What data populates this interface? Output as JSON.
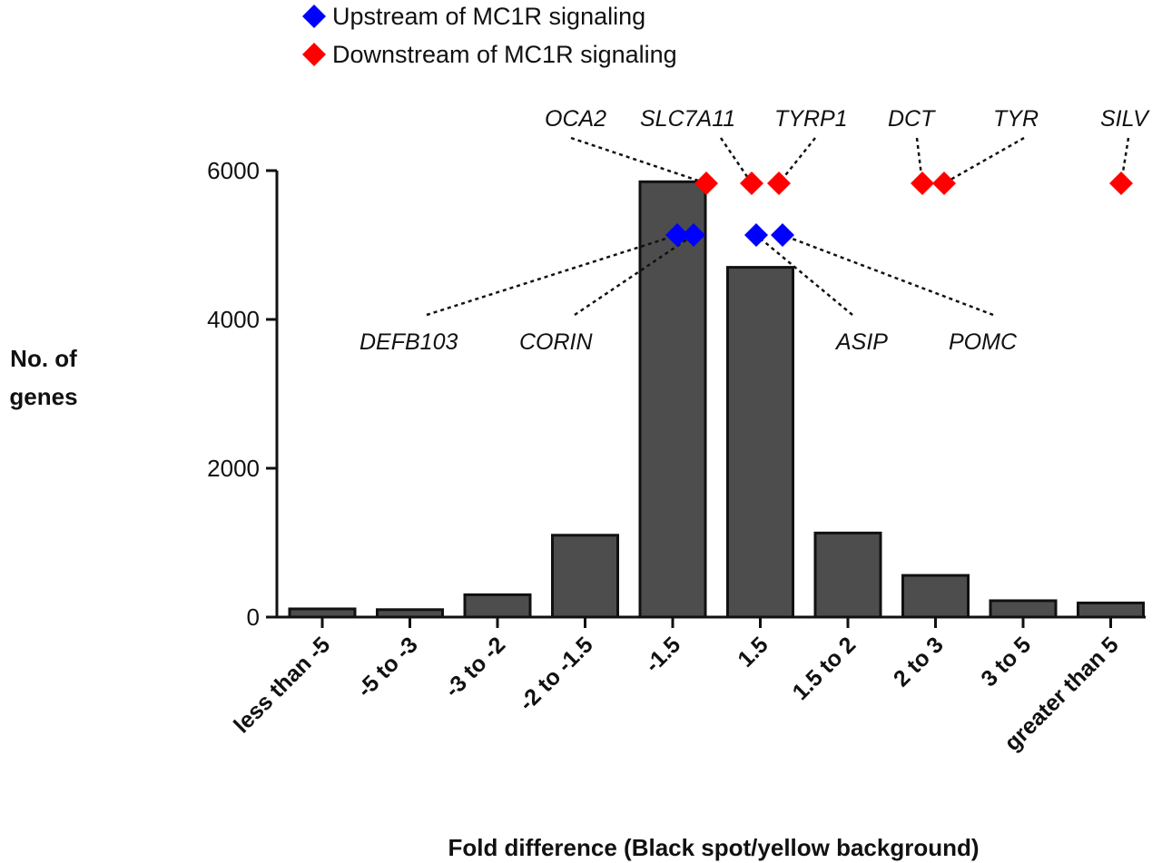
{
  "chart_data": {
    "type": "bar",
    "title": "",
    "xlabel": "Fold difference (Black spot/yellow background)",
    "ylabel_lines": [
      "No. of",
      "genes"
    ],
    "ylim": [
      0,
      6000
    ],
    "yticks": [
      0,
      2000,
      4000,
      6000
    ],
    "categories": [
      "less than -5",
      "-5 to -3",
      "-3 to -2",
      "-2 to -1.5",
      "-1.5",
      "1.5",
      "1.5 to 2",
      "2 to 3",
      "3 to 5",
      "greater than 5"
    ],
    "values": [
      110,
      100,
      300,
      1100,
      5850,
      4700,
      1130,
      560,
      220,
      190
    ],
    "bar_color": "#4d4d4d",
    "legend": [
      {
        "label": "Upstream of MC1R signaling",
        "color": "#0000ff"
      },
      {
        "label": "Downstream of MC1R signaling",
        "color": "#ff0000"
      }
    ],
    "gene_markers": [
      {
        "gene": "OCA2",
        "group": "downstream",
        "x_category": "-1.5",
        "y": 5850
      },
      {
        "gene": "SLC7A11",
        "group": "downstream",
        "x_category": "1.5",
        "y": 5850
      },
      {
        "gene": "TYRP1",
        "group": "downstream",
        "x_category": "1.5",
        "y": 5850
      },
      {
        "gene": "DCT",
        "group": "downstream",
        "x_category": "2 to 3",
        "y": 5850
      },
      {
        "gene": "TYR",
        "group": "downstream",
        "x_category": "2 to 3",
        "y": 5850
      },
      {
        "gene": "SILV",
        "group": "downstream",
        "x_category": "greater than 5",
        "y": 5850
      },
      {
        "gene": "DEFB103",
        "group": "upstream",
        "x_category": "-1.5",
        "y": 5150
      },
      {
        "gene": "CORIN",
        "group": "upstream",
        "x_category": "-1.5",
        "y": 5150
      },
      {
        "gene": "ASIP",
        "group": "upstream",
        "x_category": "1.5",
        "y": 5150
      },
      {
        "gene": "POMC",
        "group": "upstream",
        "x_category": "1.5",
        "y": 5150
      }
    ]
  }
}
